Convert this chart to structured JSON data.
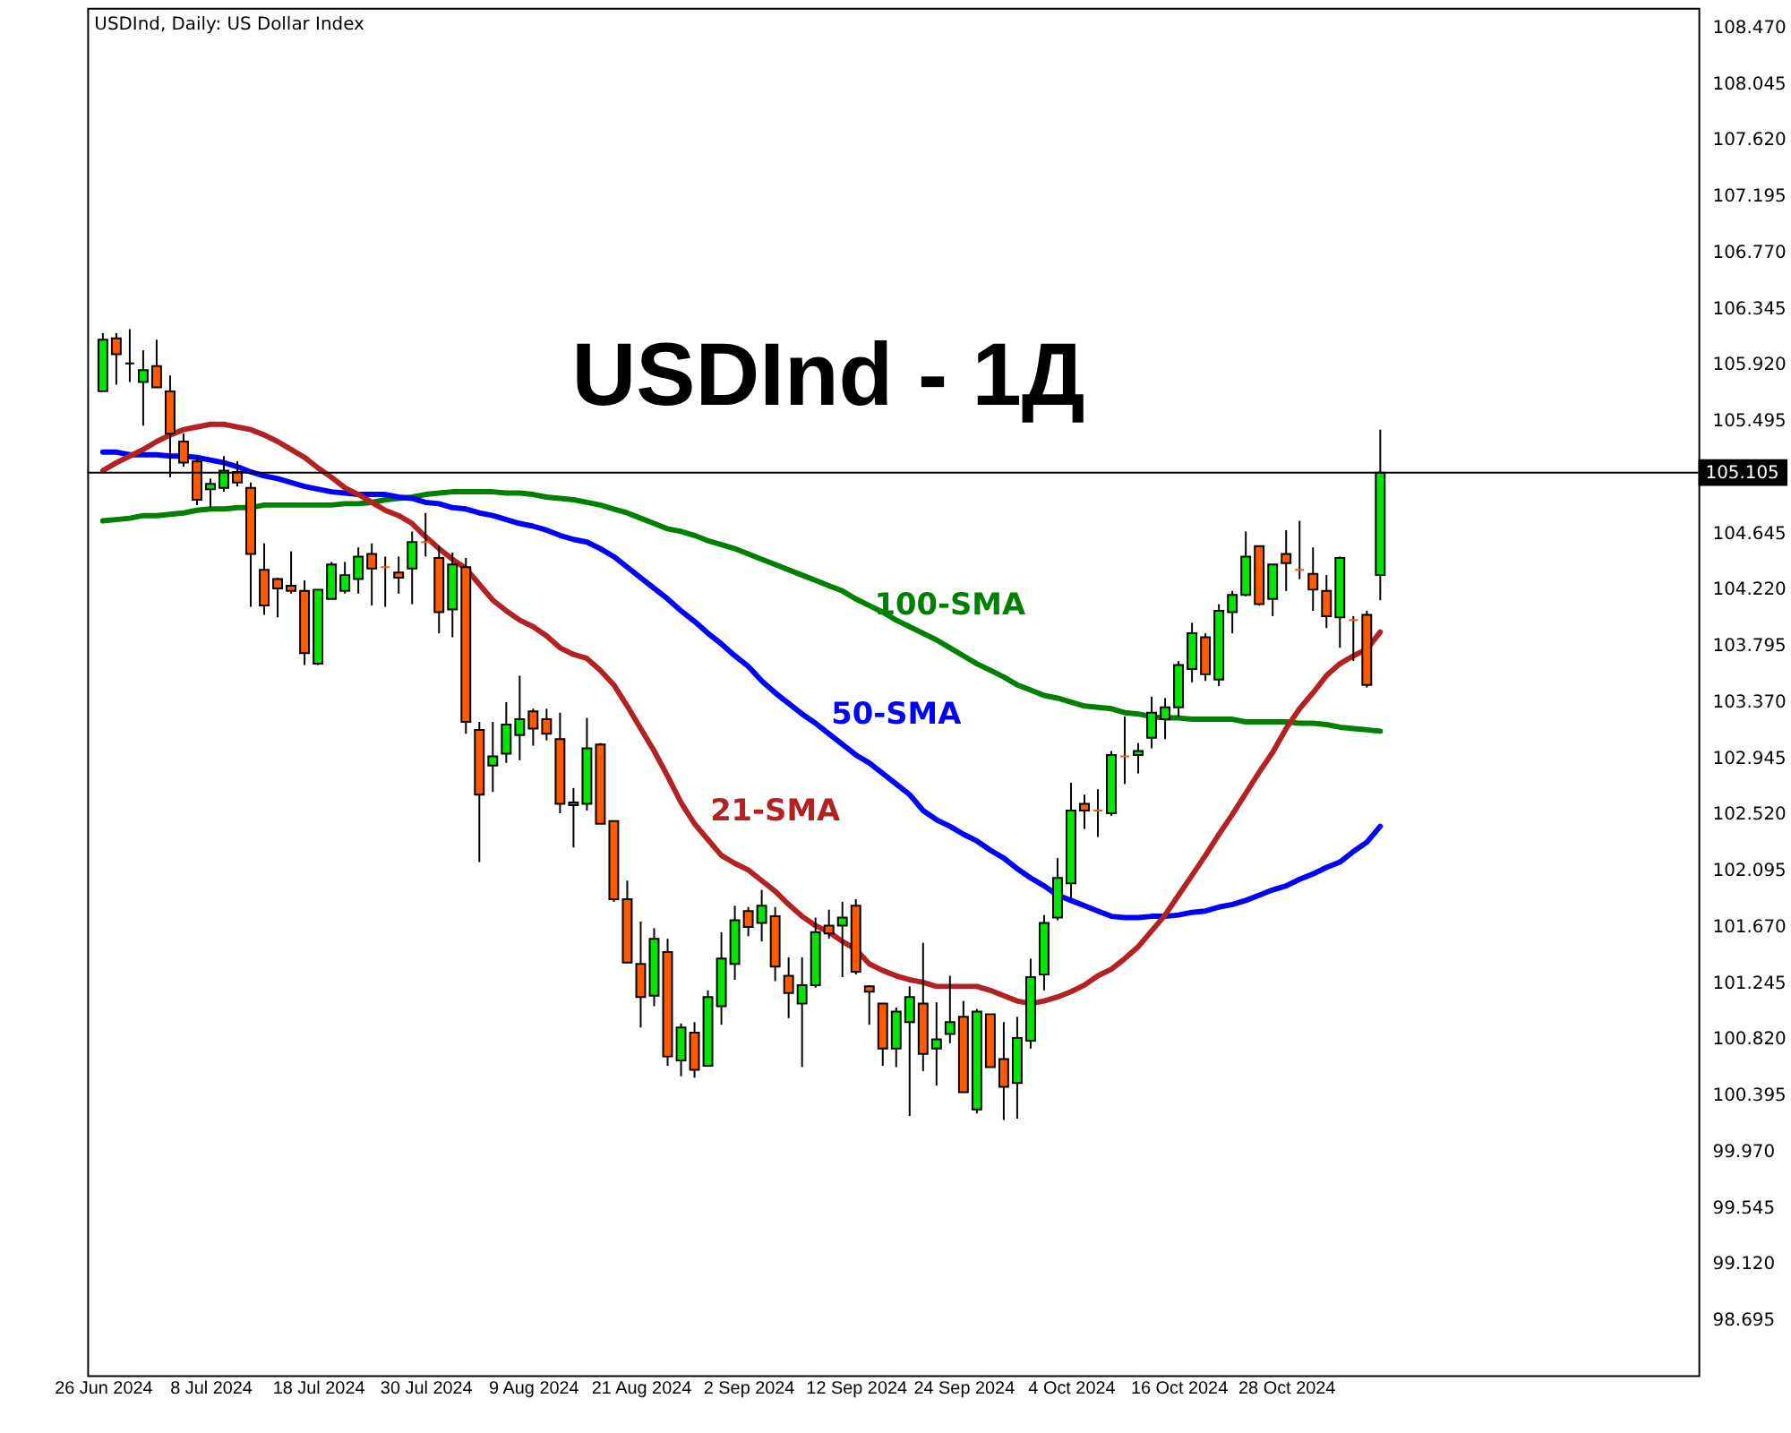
{
  "chart_data": {
    "type": "candlestick",
    "title": "USDInd - 1Д",
    "subtitle": "USDInd, Daily:  US Dollar Index",
    "categories": [
      "26 Jun 2024",
      null,
      null,
      null,
      null,
      null,
      null,
      null,
      "8 Jul 2024",
      null,
      null,
      null,
      null,
      null,
      null,
      null,
      "18 Jul 2024",
      null,
      null,
      null,
      null,
      null,
      null,
      null,
      "30 Jul 2024",
      null,
      null,
      null,
      null,
      null,
      null,
      null,
      "9 Aug 2024",
      null,
      null,
      null,
      null,
      null,
      null,
      null,
      "21 Aug 2024",
      null,
      null,
      null,
      null,
      null,
      null,
      null,
      "2 Sep 2024",
      null,
      null,
      null,
      null,
      null,
      null,
      null,
      "12 Sep 2024",
      null,
      null,
      null,
      null,
      null,
      null,
      null,
      "24 Sep 2024",
      null,
      null,
      null,
      null,
      null,
      null,
      null,
      "4 Oct 2024",
      null,
      null,
      null,
      null,
      null,
      null,
      null,
      "16 Oct 2024",
      null,
      null,
      null,
      null,
      null,
      null,
      null,
      "28 Oct 2024",
      null,
      null,
      null,
      null,
      null,
      null,
      null
    ],
    "ohlc": [
      [
        105.72,
        106.16,
        105.72,
        106.11
      ],
      [
        106.12,
        106.16,
        105.77,
        106.0
      ],
      [
        105.93,
        106.19,
        105.79,
        105.93
      ],
      [
        105.79,
        106.03,
        105.46,
        105.88
      ],
      [
        105.91,
        106.11,
        105.75,
        105.75
      ],
      [
        105.72,
        105.84,
        105.07,
        105.4
      ],
      [
        105.34,
        105.4,
        105.15,
        105.18
      ],
      [
        105.19,
        105.23,
        104.86,
        104.9
      ],
      [
        104.98,
        105.06,
        104.84,
        105.02
      ],
      [
        104.99,
        105.23,
        104.96,
        105.12
      ],
      [
        105.11,
        105.19,
        105.0,
        105.03
      ],
      [
        104.99,
        105.03,
        104.09,
        104.49
      ],
      [
        104.37,
        104.57,
        104.03,
        104.1
      ],
      [
        104.3,
        104.31,
        104.01,
        104.23
      ],
      [
        104.25,
        104.51,
        104.19,
        104.21
      ],
      [
        104.21,
        104.29,
        103.65,
        103.74
      ],
      [
        103.66,
        104.22,
        103.65,
        104.22
      ],
      [
        104.15,
        104.43,
        104.15,
        104.41
      ],
      [
        104.21,
        104.43,
        104.19,
        104.33
      ],
      [
        104.3,
        104.54,
        104.19,
        104.47
      ],
      [
        104.49,
        104.57,
        104.1,
        104.38
      ],
      [
        104.39,
        104.47,
        104.09,
        104.39
      ],
      [
        104.35,
        104.47,
        104.19,
        104.31
      ],
      [
        104.38,
        104.66,
        104.11,
        104.58
      ],
      [
        104.58,
        104.8,
        104.47,
        104.58
      ],
      [
        104.46,
        104.55,
        103.89,
        104.05
      ],
      [
        104.07,
        104.5,
        103.86,
        104.41
      ],
      [
        104.39,
        104.46,
        103.13,
        103.22
      ],
      [
        103.16,
        103.22,
        102.16,
        102.67
      ],
      [
        102.89,
        103.22,
        102.69,
        102.96
      ],
      [
        102.98,
        103.37,
        102.91,
        103.2
      ],
      [
        103.12,
        103.57,
        102.93,
        103.24
      ],
      [
        103.3,
        103.32,
        103.04,
        103.17
      ],
      [
        103.24,
        103.32,
        103.08,
        103.13
      ],
      [
        103.09,
        103.29,
        102.53,
        102.6
      ],
      [
        102.61,
        102.72,
        102.27,
        102.59
      ],
      [
        102.6,
        103.25,
        102.55,
        103.02
      ],
      [
        103.05,
        103.06,
        102.45,
        102.45
      ],
      [
        102.47,
        102.47,
        101.86,
        101.88
      ],
      [
        101.88,
        102.02,
        101.4,
        101.4
      ],
      [
        101.39,
        101.71,
        100.91,
        101.14
      ],
      [
        101.15,
        101.66,
        101.07,
        101.58
      ],
      [
        101.48,
        101.58,
        100.62,
        100.69
      ],
      [
        100.66,
        100.94,
        100.54,
        100.91
      ],
      [
        100.87,
        100.95,
        100.53,
        100.59
      ],
      [
        100.62,
        101.19,
        100.62,
        101.14
      ],
      [
        101.07,
        101.63,
        100.93,
        101.43
      ],
      [
        101.39,
        101.83,
        101.27,
        101.72
      ],
      [
        101.79,
        101.82,
        101.6,
        101.67
      ],
      [
        101.7,
        101.95,
        101.56,
        101.83
      ],
      [
        101.75,
        101.82,
        101.26,
        101.37
      ],
      [
        101.3,
        101.44,
        100.98,
        101.17
      ],
      [
        101.09,
        101.44,
        100.61,
        101.23
      ],
      [
        101.23,
        101.74,
        101.21,
        101.63
      ],
      [
        101.68,
        101.8,
        101.58,
        101.62
      ],
      [
        101.68,
        101.86,
        101.29,
        101.74
      ],
      [
        101.83,
        101.88,
        101.31,
        101.33
      ],
      [
        101.22,
        101.23,
        100.93,
        101.18
      ],
      [
        101.09,
        101.09,
        100.62,
        100.75
      ],
      [
        100.75,
        101.06,
        100.61,
        101.03
      ],
      [
        100.95,
        101.22,
        100.24,
        101.14
      ],
      [
        101.09,
        101.55,
        100.58,
        100.71
      ],
      [
        100.75,
        101.1,
        100.47,
        100.82
      ],
      [
        100.86,
        101.3,
        100.79,
        100.95
      ],
      [
        100.99,
        101.11,
        100.42,
        100.42
      ],
      [
        100.29,
        101.05,
        100.26,
        101.03
      ],
      [
        101.01,
        101.01,
        100.61,
        100.61
      ],
      [
        100.67,
        100.95,
        100.21,
        100.46
      ],
      [
        100.49,
        100.99,
        100.22,
        100.83
      ],
      [
        100.81,
        101.43,
        100.75,
        101.29
      ],
      [
        101.31,
        101.76,
        101.19,
        101.7
      ],
      [
        101.74,
        102.19,
        101.72,
        102.04
      ],
      [
        102.0,
        102.76,
        101.88,
        102.55
      ],
      [
        102.6,
        102.67,
        102.41,
        102.55
      ],
      [
        102.55,
        102.71,
        102.35,
        102.55
      ],
      [
        102.53,
        103.0,
        102.51,
        102.97
      ],
      [
        102.96,
        103.26,
        102.75,
        102.96
      ],
      [
        102.97,
        103.06,
        102.83,
        103.0
      ],
      [
        103.1,
        103.41,
        103.02,
        103.29
      ],
      [
        103.24,
        103.4,
        103.09,
        103.33
      ],
      [
        103.33,
        103.68,
        103.26,
        103.65
      ],
      [
        103.62,
        103.97,
        103.52,
        103.89
      ],
      [
        103.86,
        103.89,
        103.53,
        103.58
      ],
      [
        103.54,
        104.11,
        103.49,
        104.06
      ],
      [
        104.05,
        104.21,
        103.89,
        104.18
      ],
      [
        104.18,
        104.66,
        104.17,
        104.47
      ],
      [
        104.55,
        104.55,
        104.1,
        104.11
      ],
      [
        104.15,
        104.41,
        104.02,
        104.41
      ],
      [
        104.49,
        104.67,
        104.21,
        104.42
      ],
      [
        104.37,
        104.74,
        104.3,
        104.37
      ],
      [
        104.34,
        104.54,
        104.06,
        104.22
      ],
      [
        104.21,
        104.33,
        103.93,
        104.02
      ],
      [
        104.01,
        104.47,
        103.78,
        104.46
      ],
      [
        103.99,
        104.02,
        103.68,
        103.99
      ],
      [
        104.03,
        104.06,
        103.48,
        103.5
      ],
      [
        104.33,
        105.43,
        104.14,
        105.105
      ]
    ],
    "colors": [
      "#00e600",
      "#ff5a00",
      "#000000",
      "#00e600",
      "#ff5a00",
      "#ff5a00",
      "#ff5a00",
      "#ff5a00",
      "#00e600",
      "#00e600",
      "#ff5a00",
      "#ff5a00",
      "#ff5a00",
      "#ff5a00",
      "#ff5a00",
      "#ff5a00",
      "#00e600",
      "#00e600",
      "#00e600",
      "#00e600",
      "#ff5a00",
      "#ff5a00",
      "#ff5a00",
      "#00e600",
      "#ff5a00",
      "#ff5a00",
      "#00e600",
      "#ff5a00",
      "#ff5a00",
      "#00e600",
      "#00e600",
      "#00e600",
      "#ff5a00",
      "#ff5a00",
      "#ff5a00",
      "#ff5a00",
      "#00e600",
      "#ff5a00",
      "#ff5a00",
      "#ff5a00",
      "#ff5a00",
      "#00e600",
      "#ff5a00",
      "#00e600",
      "#ff5a00",
      "#00e600",
      "#00e600",
      "#00e600",
      "#ff5a00",
      "#00e600",
      "#ff5a00",
      "#ff5a00",
      "#00e600",
      "#00e600",
      "#ff5a00",
      "#00e600",
      "#ff5a00",
      "#ff5a00",
      "#ff5a00",
      "#00e600",
      "#00e600",
      "#ff5a00",
      "#00e600",
      "#00e600",
      "#ff5a00",
      "#00e600",
      "#ff5a00",
      "#ff5a00",
      "#00e600",
      "#00e600",
      "#00e600",
      "#00e600",
      "#00e600",
      "#ff5a00",
      "#ff5a00",
      "#00e600",
      "#ff5a00",
      "#00e600",
      "#00e600",
      "#00e600",
      "#00e600",
      "#00e600",
      "#ff5a00",
      "#00e600",
      "#00e600",
      "#00e600",
      "#ff5a00",
      "#00e600",
      "#ff5a00",
      "#ff5a00",
      "#ff5a00",
      "#ff5a00",
      "#00e600",
      "#ff5a00",
      "#ff5a00",
      "#00e600"
    ],
    "series": [
      {
        "name": "100-SMA",
        "type": "line",
        "color": "#008000",
        "values": [
          104.74,
          104.75,
          104.76,
          104.78,
          104.78,
          104.79,
          104.8,
          104.82,
          104.83,
          104.83,
          104.84,
          104.84,
          104.86,
          104.86,
          104.86,
          104.86,
          104.86,
          104.86,
          104.87,
          104.87,
          104.88,
          104.9,
          104.91,
          104.92,
          104.94,
          104.95,
          104.96,
          104.96,
          104.96,
          104.96,
          104.95,
          104.95,
          104.94,
          104.92,
          104.91,
          104.9,
          104.88,
          104.86,
          104.83,
          104.8,
          104.76,
          104.72,
          104.68,
          104.66,
          104.63,
          104.59,
          104.56,
          104.53,
          104.49,
          104.45,
          104.41,
          104.37,
          104.33,
          104.29,
          104.25,
          104.21,
          104.15,
          104.1,
          104.05,
          103.99,
          103.94,
          103.89,
          103.84,
          103.78,
          103.72,
          103.66,
          103.61,
          103.56,
          103.5,
          103.46,
          103.42,
          103.4,
          103.37,
          103.34,
          103.33,
          103.32,
          103.29,
          103.28,
          103.26,
          103.25,
          103.25,
          103.24,
          103.24,
          103.24,
          103.24,
          103.22,
          103.22,
          103.22,
          103.22,
          103.21,
          103.21,
          103.2,
          103.18,
          103.17,
          103.16,
          103.15
        ]
      },
      {
        "name": "50-SMA",
        "type": "line",
        "color": "#0000ff",
        "values": [
          105.26,
          105.26,
          105.24,
          105.24,
          105.24,
          105.23,
          105.23,
          105.22,
          105.2,
          105.18,
          105.15,
          105.11,
          105.08,
          105.06,
          105.03,
          105.0,
          104.98,
          104.96,
          104.95,
          104.94,
          104.94,
          104.94,
          104.92,
          104.91,
          104.88,
          104.87,
          104.84,
          104.83,
          104.8,
          104.78,
          104.75,
          104.72,
          104.7,
          104.67,
          104.63,
          104.6,
          104.58,
          104.53,
          104.47,
          104.39,
          104.31,
          104.23,
          104.15,
          104.06,
          103.98,
          103.89,
          103.81,
          103.72,
          103.64,
          103.53,
          103.44,
          103.36,
          103.28,
          103.21,
          103.13,
          103.05,
          102.97,
          102.91,
          102.83,
          102.75,
          102.67,
          102.55,
          102.48,
          102.43,
          102.37,
          102.32,
          102.25,
          102.19,
          102.11,
          102.04,
          101.98,
          101.91,
          101.87,
          101.83,
          101.79,
          101.75,
          101.74,
          101.74,
          101.75,
          101.75,
          101.76,
          101.78,
          101.79,
          101.82,
          101.84,
          101.87,
          101.91,
          101.95,
          101.98,
          102.03,
          102.07,
          102.12,
          102.16,
          102.24,
          102.31,
          102.43
        ]
      },
      {
        "name": "21-SMA",
        "type": "line",
        "color": "#b22222",
        "values": [
          105.12,
          105.18,
          105.23,
          105.28,
          105.34,
          105.39,
          105.43,
          105.45,
          105.47,
          105.47,
          105.45,
          105.43,
          105.39,
          105.34,
          105.28,
          105.22,
          105.14,
          105.07,
          104.99,
          104.94,
          104.88,
          104.82,
          104.78,
          104.72,
          104.62,
          104.53,
          104.45,
          104.38,
          104.26,
          104.14,
          104.06,
          103.99,
          103.94,
          103.87,
          103.78,
          103.73,
          103.7,
          103.61,
          103.5,
          103.34,
          103.17,
          103.0,
          102.81,
          102.61,
          102.45,
          102.33,
          102.21,
          102.15,
          102.1,
          102.02,
          101.94,
          101.84,
          101.75,
          101.68,
          101.63,
          101.56,
          101.5,
          101.39,
          101.34,
          101.3,
          101.27,
          101.25,
          101.22,
          101.22,
          101.22,
          101.22,
          101.19,
          101.15,
          101.11,
          101.09,
          101.11,
          101.14,
          101.18,
          101.23,
          101.3,
          101.35,
          101.43,
          101.52,
          101.64,
          101.76,
          101.91,
          102.06,
          102.21,
          102.37,
          102.52,
          102.68,
          102.84,
          102.99,
          103.17,
          103.32,
          103.44,
          103.57,
          103.66,
          103.72,
          103.77,
          103.9
        ]
      }
    ],
    "ylim": [
      98.28,
      108.62
    ],
    "yticks": [
      {
        "value": 108.47,
        "label": "108.470"
      },
      108.045,
      {
        "value": 107.62,
        "label": "107.620"
      },
      107.195,
      {
        "value": 106.77,
        "label": "106.770"
      },
      106.345,
      {
        "value": 105.92,
        "label": "105.920"
      },
      105.495,
      104.645,
      {
        "value": 104.22,
        "label": "104.220"
      },
      103.795,
      {
        "value": 103.37,
        "label": "103.370"
      },
      102.945,
      {
        "value": 102.52,
        "label": "102.520"
      },
      102.095,
      {
        "value": 101.67,
        "label": "101.670"
      },
      101.245,
      {
        "value": 100.82,
        "label": "100.820"
      },
      100.395,
      {
        "value": 99.97,
        "label": "99.970"
      },
      99.545,
      {
        "value": 99.12,
        "label": "99.120"
      },
      98.695
    ],
    "ref_lines": [
      {
        "axis": "y",
        "value": 105.105,
        "label": "105.105",
        "color": "#000000"
      }
    ],
    "grid": false
  }
}
